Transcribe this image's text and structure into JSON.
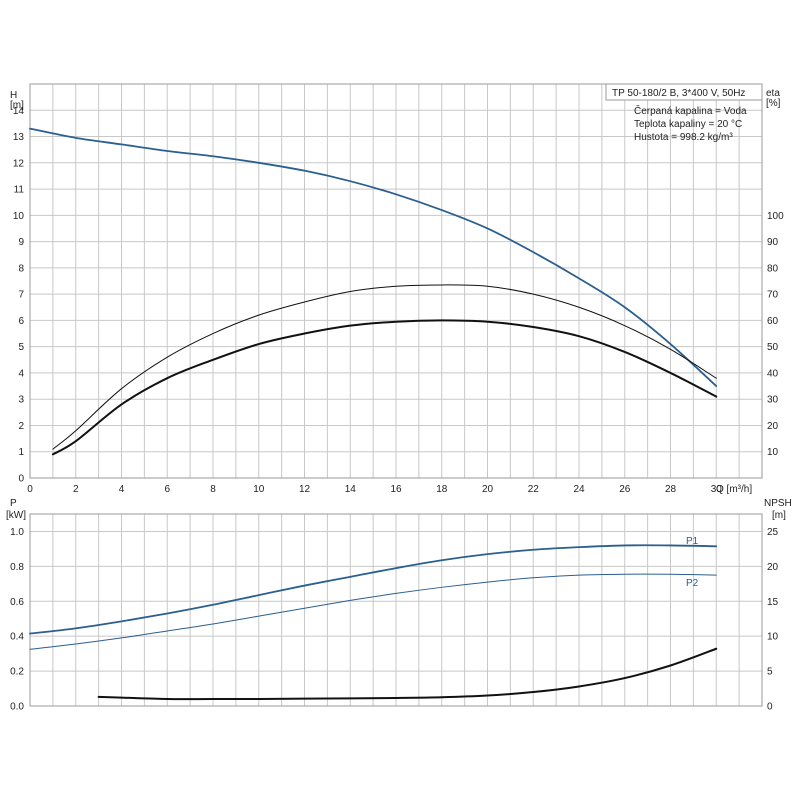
{
  "colors": {
    "blue": "#2a5f8f",
    "black": "#111111",
    "grid": "#c8c8c8"
  },
  "info": {
    "lines": [
      "TP 50-180/2 B, 3*400 V, 50Hz",
      "Čerpaná kapalina = Voda",
      "Teplota kapaliny = 20 °C",
      "Hustota = 998.2 kg/m³"
    ]
  },
  "chart_data": [
    {
      "type": "line",
      "x_ticks": [
        0,
        2,
        4,
        6,
        8,
        10,
        12,
        14,
        16,
        18,
        20,
        22,
        24,
        26,
        28,
        30
      ],
      "xlim": [
        0,
        32
      ],
      "xlabel": "Q [m³/h]",
      "left_axis": {
        "label_top": "H",
        "label_unit": "[m]",
        "ylim": [
          0,
          15
        ],
        "ticks": [
          0,
          1,
          2,
          3,
          4,
          5,
          6,
          7,
          8,
          9,
          10,
          11,
          12,
          13,
          14
        ]
      },
      "right_axis": {
        "label_top": "eta",
        "label_unit": "[%]",
        "ylim": [
          0,
          150
        ],
        "ticks": [
          10,
          20,
          30,
          40,
          50,
          60,
          70,
          80,
          90,
          100
        ]
      },
      "grid": true,
      "series": [
        {
          "axis": "left",
          "color": "blue",
          "width": 1.8,
          "x": [
            0,
            2,
            4,
            6,
            8,
            10,
            12,
            14,
            16,
            18,
            20,
            22,
            24,
            26,
            28,
            30
          ],
          "values": [
            13.3,
            12.95,
            12.7,
            12.45,
            12.25,
            12.0,
            11.7,
            11.3,
            10.8,
            10.2,
            9.5,
            8.6,
            7.6,
            6.5,
            5.1,
            3.5
          ]
        },
        {
          "axis": "right",
          "color": "black",
          "width": 1.0,
          "x": [
            1,
            2,
            4,
            6,
            8,
            10,
            12,
            14,
            16,
            18,
            20,
            22,
            24,
            26,
            28,
            30
          ],
          "values": [
            11,
            18,
            34,
            46,
            55,
            62,
            67,
            71,
            73,
            73.5,
            73,
            70,
            65,
            58,
            49,
            38
          ]
        },
        {
          "axis": "right",
          "color": "black",
          "width": 2.0,
          "x": [
            1,
            2,
            4,
            6,
            8,
            10,
            12,
            14,
            16,
            18,
            20,
            22,
            24,
            26,
            28,
            30
          ],
          "values": [
            9,
            14,
            28,
            38,
            45,
            51,
            55,
            58,
            59.5,
            60,
            59.5,
            57.5,
            54,
            48,
            40,
            31
          ]
        }
      ]
    },
    {
      "type": "line",
      "x_ticks": [
        0,
        2,
        4,
        6,
        8,
        10,
        12,
        14,
        16,
        18,
        20,
        22,
        24,
        26,
        28,
        30
      ],
      "xlim": [
        0,
        32
      ],
      "left_axis": {
        "label_top": "P",
        "label_unit": "[kW]",
        "ylim": [
          0,
          1.1
        ],
        "ticks": [
          0.0,
          0.2,
          0.4,
          0.6,
          0.8,
          1.0
        ]
      },
      "right_axis": {
        "label_top": "NPSH",
        "label_unit": "[m]",
        "ylim": [
          0,
          27.5
        ],
        "ticks": [
          0,
          5,
          10,
          15,
          20,
          25
        ]
      },
      "grid": true,
      "series": [
        {
          "name": "P1",
          "axis": "left",
          "color": "blue",
          "width": 1.8,
          "x": [
            0,
            2,
            4,
            6,
            8,
            10,
            12,
            14,
            16,
            18,
            20,
            22,
            24,
            26,
            28,
            30
          ],
          "values": [
            0.415,
            0.445,
            0.485,
            0.53,
            0.58,
            0.635,
            0.69,
            0.74,
            0.79,
            0.835,
            0.87,
            0.895,
            0.91,
            0.92,
            0.92,
            0.915
          ]
        },
        {
          "name": "P2",
          "axis": "left",
          "color": "blue",
          "width": 1.0,
          "x": [
            0,
            2,
            4,
            6,
            8,
            10,
            12,
            14,
            16,
            18,
            20,
            22,
            24,
            26,
            28,
            30
          ],
          "values": [
            0.325,
            0.355,
            0.39,
            0.43,
            0.47,
            0.515,
            0.56,
            0.605,
            0.645,
            0.68,
            0.71,
            0.735,
            0.75,
            0.755,
            0.755,
            0.75
          ]
        },
        {
          "axis": "right",
          "color": "black",
          "width": 2.0,
          "x": [
            3,
            4,
            6,
            8,
            10,
            12,
            14,
            16,
            18,
            20,
            22,
            24,
            26,
            28,
            30
          ],
          "values": [
            1.3,
            1.2,
            1.0,
            1.0,
            1.0,
            1.05,
            1.1,
            1.15,
            1.25,
            1.5,
            2.0,
            2.8,
            4.0,
            5.8,
            8.2
          ]
        }
      ]
    }
  ]
}
